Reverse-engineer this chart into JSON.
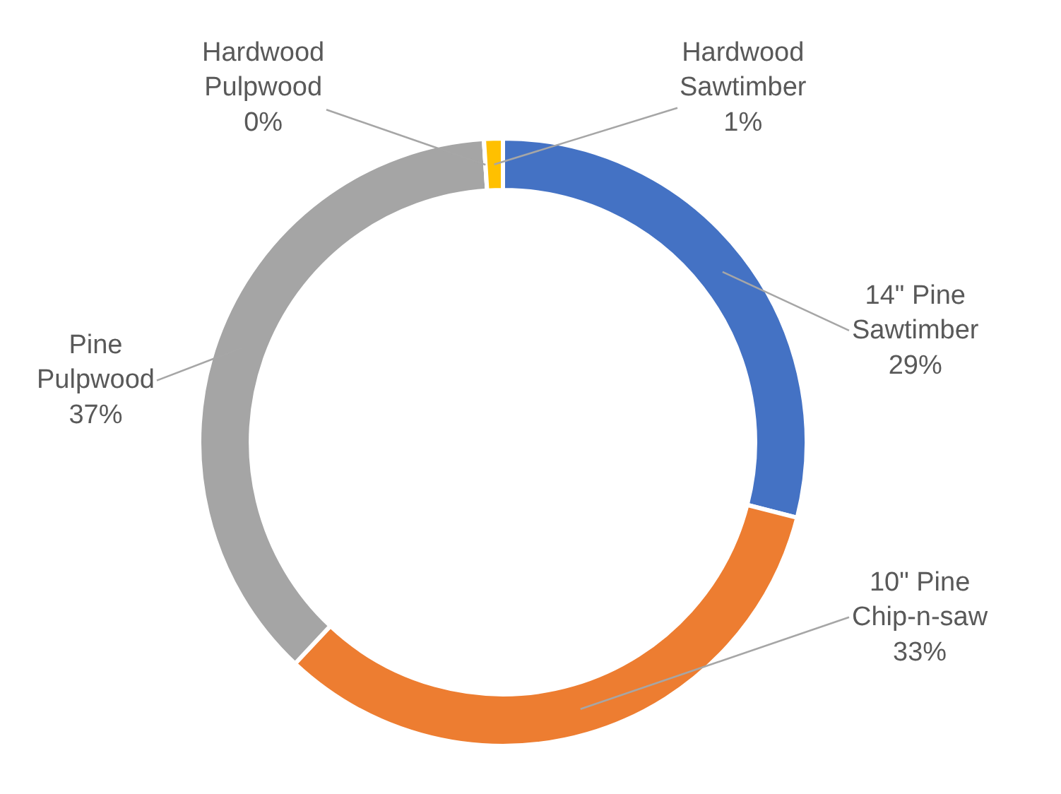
{
  "chart_data": {
    "type": "donut",
    "categories": [
      "14\" Pine Sawtimber",
      "10\" Pine Chip-n-saw",
      "Pine Pulpwood",
      "Hardwood Pulpwood",
      "Hardwood Sawtimber"
    ],
    "values": [
      29,
      33,
      37,
      0,
      1
    ],
    "value_labels": [
      "29%",
      "33%",
      "37%",
      "0%",
      "1%"
    ],
    "colors": [
      "#4472c4",
      "#ed7d31",
      "#a5a5a5",
      "#5b9bd5",
      "#ffc000"
    ],
    "legend": false
  }
}
